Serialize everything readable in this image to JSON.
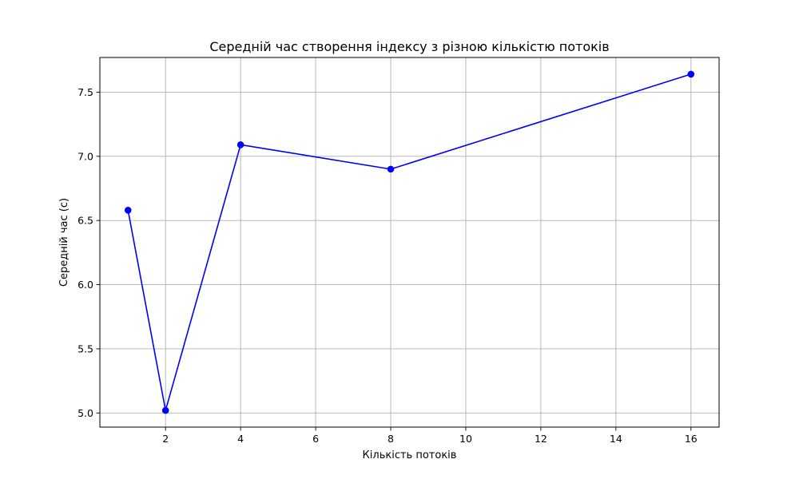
{
  "chart_data": {
    "type": "line",
    "title": "Середній час створення індексу з різною кількістю потоків",
    "xlabel": "Кількість потоків",
    "ylabel": "Середній час (с)",
    "xlim": [
      0.25,
      16.75
    ],
    "ylim": [
      4.89,
      7.77
    ],
    "x_ticks": [
      2,
      4,
      6,
      8,
      10,
      12,
      14,
      16
    ],
    "y_ticks": [
      5.0,
      5.5,
      6.0,
      6.5,
      7.0,
      7.5
    ],
    "grid": true,
    "series": [
      {
        "x": [
          1,
          2,
          4,
          8,
          16
        ],
        "values": [
          6.58,
          5.02,
          7.09,
          6.9,
          7.64
        ],
        "color": "#0000ff",
        "marker": "circle"
      }
    ]
  }
}
